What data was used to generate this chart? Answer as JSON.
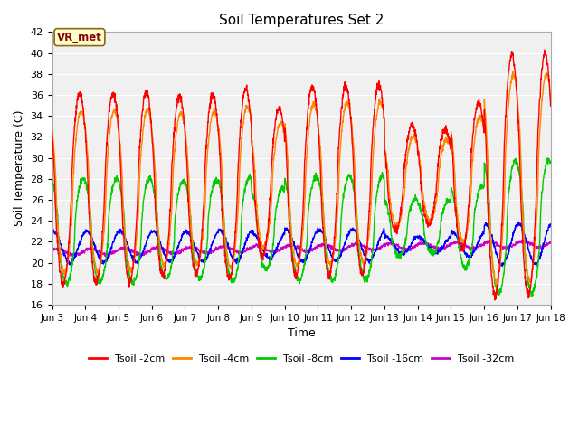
{
  "title": "Soil Temperatures Set 2",
  "xlabel": "Time",
  "ylabel": "Soil Temperature (C)",
  "ylim": [
    16,
    42
  ],
  "xlim_days": [
    3,
    18
  ],
  "x_ticks": [
    3,
    4,
    5,
    6,
    7,
    8,
    9,
    10,
    11,
    12,
    13,
    14,
    15,
    16,
    17,
    18
  ],
  "x_tick_labels": [
    "Jun 3",
    "Jun 4",
    "Jun 5",
    "Jun 6",
    "Jun 7",
    "Jun 8",
    "Jun 9",
    "Jun 10",
    "Jun 11",
    "Jun 12",
    "Jun 13",
    "Jun 14",
    "Jun 15",
    "Jun 16",
    "Jun 17",
    "Jun 18"
  ],
  "y_ticks": [
    16,
    18,
    20,
    22,
    24,
    26,
    28,
    30,
    32,
    34,
    36,
    38,
    40,
    42
  ],
  "colors": {
    "Tsoil_2cm": "#ff0000",
    "Tsoil_4cm": "#ff8800",
    "Tsoil_8cm": "#00cc00",
    "Tsoil_16cm": "#0000ff",
    "Tsoil_32cm": "#cc00cc"
  },
  "legend_labels": [
    "Tsoil -2cm",
    "Tsoil -4cm",
    "Tsoil -8cm",
    "Tsoil -16cm",
    "Tsoil -32cm"
  ],
  "annotation_text": "VR_met",
  "bg_color": "#ffffff",
  "plot_bg_color": "#f0f0f0",
  "grid_color": "#ffffff",
  "linewidth": 1.0,
  "points_per_day": 144
}
